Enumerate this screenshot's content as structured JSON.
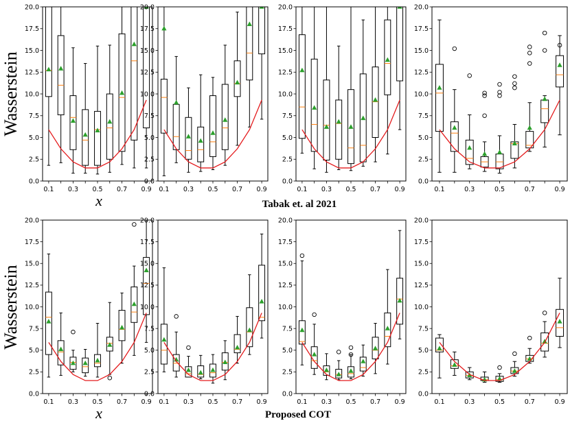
{
  "figure": {
    "ylabel": "Wasserstein",
    "xlabel": "x",
    "row_titles": [
      "Tabak et. al 2021",
      "Proposed COT"
    ]
  },
  "colors": {
    "box": "#000000",
    "median": "#ff7f0e",
    "mean": "#2ca02c",
    "true_curve": "#e41a1c"
  },
  "chart_data": [
    {
      "type": "box",
      "title": "",
      "xlabel": "x",
      "ylabel": "Wasserstein",
      "ylim": [
        0,
        20
      ],
      "categories": [
        "0.1",
        "0.2",
        "0.3",
        "0.4",
        "0.5",
        "0.6",
        "0.7",
        "0.8",
        "0.9"
      ],
      "xticks": [
        "0.1",
        "0.3",
        "0.5",
        "0.7",
        "0.9"
      ],
      "yticks": [
        "0.0",
        "2.5",
        "5.0",
        "7.5",
        "10.0",
        "12.5",
        "15.0",
        "17.5",
        "20.0"
      ],
      "whisker_low": [
        1.8,
        2.1,
        0.9,
        0.9,
        0.8,
        1.0,
        1.9,
        1.5,
        1.5
      ],
      "q1": [
        9.7,
        7.6,
        3.6,
        1.8,
        1.8,
        2.5,
        3.4,
        4.7,
        6.1
      ],
      "median": [
        12.7,
        11.0,
        7.3,
        4.7,
        5.9,
        6.1,
        9.6,
        13.8,
        20.0
      ],
      "mean": [
        12.8,
        12.9,
        6.9,
        5.3,
        5.8,
        6.8,
        10.1,
        15.7,
        20.0
      ],
      "q3": [
        20.0,
        16.7,
        9.8,
        8.2,
        8.0,
        10.0,
        16.9,
        20.0,
        20.0
      ],
      "whisker_high": [
        20.0,
        20.0,
        15.3,
        13.5,
        15.5,
        15.6,
        20.0,
        20.0,
        20.0
      ],
      "outliers": [],
      "true_curve": [
        5.9,
        3.7,
        2.2,
        1.5,
        1.5,
        2.2,
        3.7,
        5.9,
        9.3
      ]
    },
    {
      "type": "box",
      "title": "",
      "xlabel": "",
      "ylabel": "",
      "ylim": [
        0,
        20
      ],
      "categories": [
        "0.1",
        "0.2",
        "0.3",
        "0.4",
        "0.5",
        "0.6",
        "0.7",
        "0.8",
        "0.9"
      ],
      "xticks": [
        "0.1",
        "0.3",
        "0.5",
        "0.7",
        "0.9"
      ],
      "yticks": [
        "0.0",
        "2.5",
        "5.0",
        "7.5",
        "10.0",
        "12.5",
        "15.0",
        "17.5",
        "20.0"
      ],
      "whisker_low": [
        0.6,
        2.1,
        1.0,
        1.1,
        1.3,
        1.8,
        4.1,
        6.2,
        7.1
      ],
      "q1": [
        5.5,
        3.6,
        2.5,
        2.2,
        2.8,
        3.6,
        9.7,
        11.6,
        14.6
      ],
      "median": [
        9.6,
        5.1,
        3.5,
        3.6,
        4.5,
        6.1,
        11.2,
        14.7,
        20.0
      ],
      "mean": [
        17.5,
        9.0,
        5.1,
        4.6,
        5.5,
        7.0,
        11.3,
        18.0,
        20.0
      ],
      "q3": [
        11.7,
        8.8,
        7.3,
        6.2,
        9.8,
        11.1,
        13.8,
        20.0,
        20.0
      ],
      "whisker_high": [
        20.0,
        14.3,
        10.7,
        12.2,
        11.9,
        15.6,
        19.4,
        20.0,
        20.0
      ],
      "outliers": [],
      "true_curve": [
        5.9,
        3.7,
        2.2,
        1.5,
        1.5,
        2.2,
        3.7,
        5.9,
        9.3
      ]
    },
    {
      "type": "box",
      "title": "",
      "xlabel": "",
      "ylabel": "",
      "ylim": [
        0,
        20
      ],
      "categories": [
        "0.1",
        "0.2",
        "0.3",
        "0.4",
        "0.5",
        "0.6",
        "0.7",
        "0.8",
        "0.9"
      ],
      "xticks": [
        "0.1",
        "0.3",
        "0.5",
        "0.7",
        "0.9"
      ],
      "yticks": [
        "0.0",
        "2.5",
        "5.0",
        "7.5",
        "10.0",
        "12.5",
        "15.0",
        "17.5",
        "20.0"
      ],
      "whisker_low": [
        3.2,
        1.4,
        1.0,
        1.3,
        1.2,
        1.7,
        2.2,
        3.1,
        5.9
      ],
      "q1": [
        4.9,
        3.4,
        2.4,
        2.5,
        2.0,
        2.2,
        5.0,
        9.9,
        11.5
      ],
      "median": [
        8.5,
        6.5,
        6.4,
        6.6,
        3.8,
        4.1,
        9.1,
        13.5,
        20.0
      ],
      "mean": [
        12.7,
        8.4,
        6.2,
        6.8,
        6.2,
        7.2,
        9.3,
        13.9,
        20.0
      ],
      "q3": [
        16.8,
        14.0,
        11.6,
        9.3,
        10.5,
        12.3,
        13.1,
        18.5,
        20.0
      ],
      "whisker_high": [
        20.0,
        20.0,
        20.0,
        15.5,
        20.0,
        18.5,
        20.0,
        20.0,
        20.0
      ],
      "outliers": [],
      "true_curve": [
        5.9,
        3.7,
        2.2,
        1.5,
        1.5,
        2.2,
        3.7,
        5.9,
        9.3
      ]
    },
    {
      "type": "box",
      "title": "",
      "xlabel": "",
      "ylabel": "",
      "ylim": [
        0,
        20
      ],
      "categories": [
        "0.1",
        "0.2",
        "0.3",
        "0.4",
        "0.5",
        "0.6",
        "0.7",
        "0.8",
        "0.9"
      ],
      "xticks": [
        "0.1",
        "0.3",
        "0.5",
        "0.7",
        "0.9"
      ],
      "yticks": [
        "0.0",
        "2.5",
        "5.0",
        "7.5",
        "10.0",
        "12.5",
        "15.0",
        "17.5",
        "20.0"
      ],
      "whisker_low": [
        1.0,
        1.0,
        1.4,
        1.1,
        0.9,
        1.5,
        3.4,
        3.9,
        5.3
      ],
      "q1": [
        5.7,
        3.4,
        1.9,
        1.6,
        1.4,
        2.6,
        3.8,
        6.7,
        10.8
      ],
      "median": [
        10.1,
        5.5,
        2.6,
        2.2,
        2.2,
        4.3,
        4.1,
        8.3,
        12.2
      ],
      "mean": [
        10.7,
        6.1,
        3.8,
        3.1,
        3.3,
        4.3,
        6.1,
        9.4,
        13.3
      ],
      "q3": [
        13.4,
        6.8,
        4.7,
        2.8,
        3.1,
        4.5,
        5.7,
        9.3,
        14.4
      ],
      "whisker_high": [
        18.5,
        10.5,
        7.6,
        4.5,
        5.2,
        6.5,
        9.0,
        9.8,
        16.7
      ],
      "outliers": [
        [
          1,
          15.2
        ],
        [
          2,
          12.1
        ],
        [
          3,
          7.5
        ],
        [
          3,
          9.8
        ],
        [
          3,
          10.1
        ],
        [
          4,
          9.8
        ],
        [
          4,
          10.2
        ],
        [
          4,
          11.1
        ],
        [
          5,
          10.7
        ],
        [
          5,
          11.2
        ],
        [
          5,
          12.0
        ],
        [
          6,
          13.5
        ],
        [
          6,
          14.7
        ],
        [
          6,
          15.4
        ],
        [
          7,
          15.0
        ],
        [
          7,
          17.0
        ],
        [
          8,
          15.6
        ]
      ],
      "true_curve": [
        5.9,
        3.7,
        2.2,
        1.5,
        1.5,
        2.2,
        3.7,
        5.9,
        9.3
      ]
    },
    {
      "type": "box",
      "title": "",
      "xlabel": "x",
      "ylabel": "Wasserstein",
      "ylim": [
        0,
        20
      ],
      "categories": [
        "0.1",
        "0.2",
        "0.3",
        "0.4",
        "0.5",
        "0.6",
        "0.7",
        "0.8",
        "0.9"
      ],
      "xticks": [
        "0.1",
        "0.3",
        "0.5",
        "0.7",
        "0.9"
      ],
      "yticks": [
        "0.0",
        "2.5",
        "5.0",
        "7.5",
        "10.0",
        "12.5",
        "15.0",
        "17.5",
        "20.0"
      ],
      "whisker_low": [
        1.9,
        2.1,
        2.5,
        2.0,
        1.9,
        2.2,
        3.5,
        4.4,
        5.9
      ],
      "q1": [
        4.5,
        3.3,
        2.8,
        2.4,
        3.1,
        4.9,
        6.1,
        8.2,
        9.1
      ],
      "median": [
        8.8,
        4.8,
        3.6,
        3.1,
        3.5,
        5.8,
        7.4,
        9.4,
        12.7
      ],
      "mean": [
        8.3,
        5.1,
        3.5,
        3.5,
        3.8,
        5.6,
        7.6,
        10.3,
        14.2
      ],
      "q3": [
        11.7,
        6.1,
        4.2,
        4.1,
        4.5,
        6.5,
        9.6,
        12.3,
        15.7
      ],
      "whisker_high": [
        16.1,
        9.3,
        5.0,
        5.1,
        8.1,
        10.5,
        11.6,
        14.7,
        20.0
      ],
      "outliers": [
        [
          2,
          7.1
        ],
        [
          5,
          1.8
        ],
        [
          7,
          19.5
        ]
      ],
      "true_curve": [
        5.9,
        3.7,
        2.2,
        1.5,
        1.5,
        2.2,
        3.7,
        5.9,
        9.3
      ]
    },
    {
      "type": "box",
      "title": "",
      "xlabel": "",
      "ylabel": "",
      "ylim": [
        0,
        20
      ],
      "categories": [
        "0.1",
        "0.2",
        "0.3",
        "0.4",
        "0.5",
        "0.6",
        "0.7",
        "0.8",
        "0.9"
      ],
      "xticks": [
        "0.1",
        "0.3",
        "0.5",
        "0.7",
        "0.9"
      ],
      "yticks": [
        "0.0",
        "2.5",
        "5.0",
        "7.5",
        "10.0",
        "12.5",
        "15.0",
        "17.5",
        "20.0"
      ],
      "whisker_low": [
        2.5,
        1.9,
        1.9,
        1.7,
        1.2,
        1.6,
        3.5,
        4.5,
        6.4
      ],
      "q1": [
        3.4,
        2.6,
        1.9,
        1.9,
        1.9,
        2.7,
        4.7,
        5.4,
        8.4
      ],
      "median": [
        5.0,
        3.5,
        2.3,
        2.2,
        2.4,
        3.6,
        5.1,
        7.1,
        8.8
      ],
      "mean": [
        6.2,
        3.9,
        2.7,
        2.4,
        2.7,
        3.6,
        5.3,
        7.3,
        10.6
      ],
      "q3": [
        8.0,
        4.5,
        3.1,
        3.2,
        3.4,
        4.7,
        6.8,
        9.9,
        14.8
      ],
      "whisker_high": [
        14.5,
        7.1,
        4.3,
        4.4,
        4.5,
        6.1,
        8.9,
        13.7,
        18.4
      ],
      "outliers": [
        [
          1,
          8.9
        ],
        [
          2,
          5.3
        ]
      ],
      "true_curve": [
        5.9,
        3.7,
        2.2,
        1.5,
        1.5,
        2.2,
        3.7,
        5.9,
        9.3
      ]
    },
    {
      "type": "box",
      "title": "",
      "xlabel": "",
      "ylabel": "",
      "ylim": [
        0,
        20
      ],
      "categories": [
        "0.1",
        "0.2",
        "0.3",
        "0.4",
        "0.5",
        "0.6",
        "0.7",
        "0.8",
        "0.9"
      ],
      "xticks": [
        "0.1",
        "0.3",
        "0.5",
        "0.7",
        "0.9"
      ],
      "yticks": [
        "0.0",
        "2.5",
        "5.0",
        "7.5",
        "10.0",
        "12.5",
        "15.0",
        "17.5",
        "20.0"
      ],
      "whisker_low": [
        3.3,
        2.2,
        1.6,
        1.6,
        1.7,
        2.0,
        2.3,
        3.4,
        6.3
      ],
      "q1": [
        5.7,
        2.9,
        2.1,
        1.8,
        1.9,
        2.6,
        4.0,
        5.4,
        8.0
      ],
      "median": [
        6.0,
        3.8,
        2.5,
        2.2,
        2.3,
        3.0,
        5.0,
        6.6,
        10.9
      ],
      "mean": [
        7.3,
        4.5,
        2.7,
        2.2,
        2.6,
        3.7,
        5.2,
        7.5,
        10.7
      ],
      "q3": [
        8.4,
        5.4,
        3.2,
        2.8,
        3.1,
        4.2,
        6.5,
        9.3,
        13.3
      ],
      "whisker_high": [
        15.3,
        8.0,
        4.6,
        3.8,
        4.5,
        5.6,
        8.1,
        14.3,
        18.8
      ],
      "outliers": [
        [
          0,
          15.9
        ],
        [
          1,
          9.1
        ],
        [
          4,
          4.5
        ],
        [
          4,
          5.3
        ],
        [
          3,
          4.8
        ]
      ],
      "true_curve": [
        5.9,
        3.7,
        2.2,
        1.5,
        1.5,
        2.2,
        3.7,
        5.9,
        9.3
      ]
    },
    {
      "type": "box",
      "title": "",
      "xlabel": "",
      "ylabel": "",
      "ylim": [
        0,
        20
      ],
      "categories": [
        "0.1",
        "0.2",
        "0.3",
        "0.4",
        "0.5",
        "0.6",
        "0.7",
        "0.8",
        "0.9"
      ],
      "xticks": [
        "0.1",
        "0.3",
        "0.5",
        "0.7",
        "0.9"
      ],
      "yticks": [
        "0.0",
        "2.5",
        "5.0",
        "7.5",
        "10.0",
        "12.5",
        "15.0",
        "17.5",
        "20.0"
      ],
      "whisker_low": [
        1.8,
        2.1,
        1.6,
        1.3,
        1.3,
        2.0,
        3.5,
        4.2,
        5.3
      ],
      "q1": [
        4.8,
        2.9,
        1.8,
        1.5,
        1.4,
        2.3,
        3.7,
        4.9,
        6.6
      ],
      "median": [
        5.0,
        3.2,
        2.1,
        1.6,
        1.6,
        2.6,
        4.0,
        5.8,
        7.6
      ],
      "mean": [
        5.2,
        3.3,
        2.1,
        1.6,
        1.7,
        2.6,
        4.0,
        6.0,
        8.3
      ],
      "q3": [
        6.4,
        3.9,
        2.5,
        1.9,
        2.0,
        3.0,
        4.4,
        7.0,
        9.7
      ],
      "whisker_high": [
        6.8,
        4.8,
        3.0,
        2.5,
        2.3,
        3.7,
        5.2,
        8.3,
        13.3
      ],
      "outliers": [
        [
          4,
          3.0
        ],
        [
          5,
          4.6
        ],
        [
          6,
          6.4
        ],
        [
          7,
          9.3
        ]
      ],
      "true_curve": [
        5.9,
        3.7,
        2.2,
        1.5,
        1.5,
        2.2,
        3.7,
        5.9,
        9.3
      ]
    }
  ]
}
